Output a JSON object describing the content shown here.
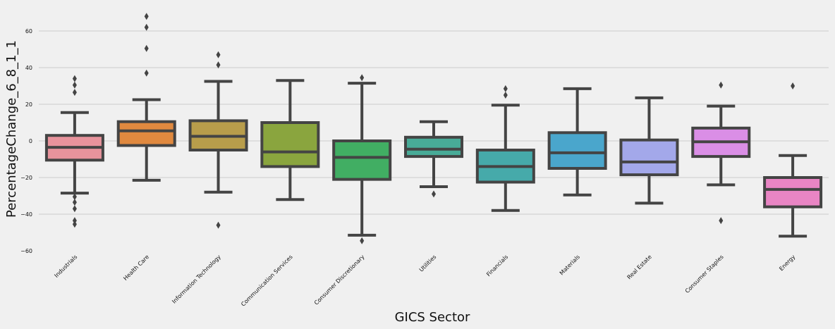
{
  "chart_data": {
    "type": "box",
    "xlabel": "GICS Sector",
    "ylabel": "PercentageChange_6_8_1_1",
    "ylim": [
      -60,
      72
    ],
    "yticks": [
      -60,
      -40,
      -20,
      0,
      20,
      40,
      60
    ],
    "grid": "horizontal",
    "categories": [
      "Industrials",
      "Health Care",
      "Information Technology",
      "Communication Services",
      "Consumer Discretionary",
      "Utilities",
      "Financials",
      "Materials",
      "Real Estate",
      "Consumer Staples",
      "Energy"
    ],
    "boxes": [
      {
        "category": "Industrials",
        "color": "#e8939c",
        "whisker_low": -28.5,
        "q1": -10.5,
        "median": -3.5,
        "q3": 3,
        "whisker_high": 15.5,
        "outliers": [
          34,
          30.5,
          26.5,
          -30.5,
          -33.5,
          -37,
          -43.5,
          -45.5
        ]
      },
      {
        "category": "Health Care",
        "color": "#e0893f",
        "whisker_low": -21.5,
        "q1": -2.5,
        "median": 5.5,
        "q3": 10.5,
        "whisker_high": 22.5,
        "outliers": [
          68,
          62,
          50.5,
          37
        ]
      },
      {
        "category": "Information Technology",
        "color": "#b89d4b",
        "whisker_low": -28,
        "q1": -5,
        "median": 2.5,
        "q3": 11,
        "whisker_high": 32.5,
        "outliers": [
          47,
          41.5,
          -46
        ]
      },
      {
        "category": "Communication Services",
        "color": "#8aa53e",
        "whisker_low": -32,
        "q1": -14,
        "median": -6,
        "q3": 10,
        "whisker_high": 33,
        "outliers": []
      },
      {
        "category": "Consumer Discretionary",
        "color": "#41ae63",
        "whisker_low": -51.5,
        "q1": -21,
        "median": -9,
        "q3": 0,
        "whisker_high": 31.5,
        "outliers": [
          34.5,
          -54.5
        ]
      },
      {
        "category": "Utilities",
        "color": "#48ab97",
        "whisker_low": -25,
        "q1": -8.5,
        "median": -4.5,
        "q3": 2,
        "whisker_high": 10.5,
        "outliers": [
          -29
        ]
      },
      {
        "category": "Financials",
        "color": "#46aaaa",
        "whisker_low": -38,
        "q1": -22.5,
        "median": -14,
        "q3": -5,
        "whisker_high": 19.5,
        "outliers": [
          28.5,
          25
        ]
      },
      {
        "category": "Materials",
        "color": "#4aa6cc",
        "whisker_low": -29.5,
        "q1": -15,
        "median": -6.5,
        "q3": 4.5,
        "whisker_high": 28.5,
        "outliers": []
      },
      {
        "category": "Real Estate",
        "color": "#a3a8ea",
        "whisker_low": -34,
        "q1": -18.5,
        "median": -11.5,
        "q3": 0.5,
        "whisker_high": 23.5,
        "outliers": []
      },
      {
        "category": "Consumer Staples",
        "color": "#da8ee6",
        "whisker_low": -24,
        "q1": -8.5,
        "median": -0.5,
        "q3": 7,
        "whisker_high": 19,
        "outliers": [
          30.5,
          -43.5
        ]
      },
      {
        "category": "Energy",
        "color": "#e985c4",
        "whisker_low": -52,
        "q1": -36,
        "median": -26.5,
        "q3": -20,
        "whisker_high": -8,
        "outliers": [
          30
        ]
      }
    ],
    "colors": {
      "background": "#f0f0f0",
      "grid": "#cbcbcb",
      "line": "#444444",
      "text": "#111111"
    }
  }
}
